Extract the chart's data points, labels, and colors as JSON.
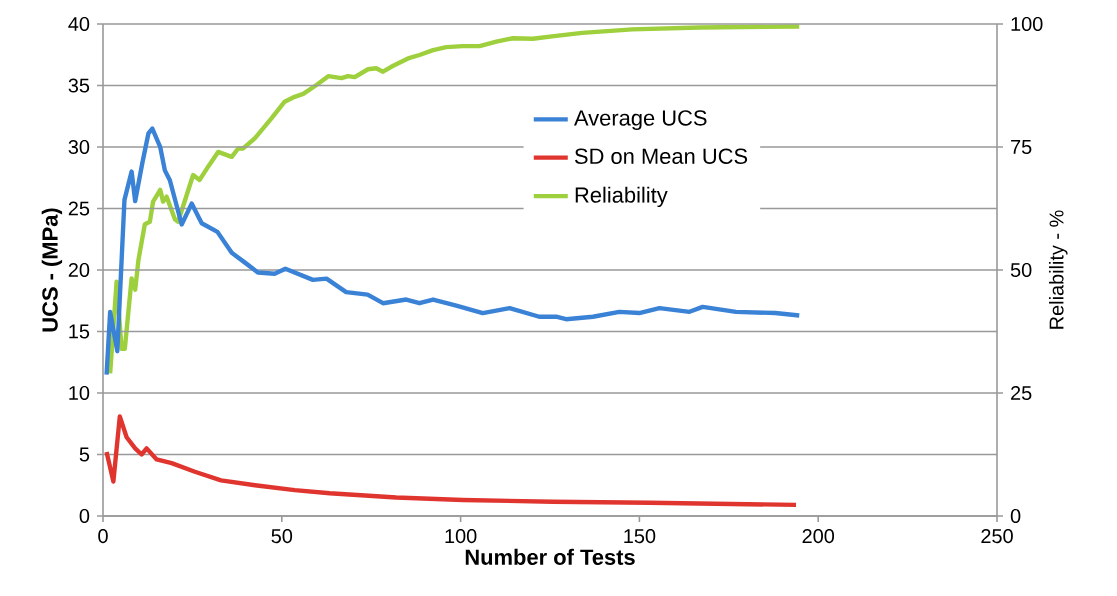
{
  "chart_data": {
    "type": "line",
    "xlabel": "Number of Tests",
    "ylabel": "UCS - (MPa)",
    "y2label": "Reliability - %",
    "xlim": [
      0,
      250
    ],
    "xticks": [
      0,
      50,
      100,
      150,
      200,
      250
    ],
    "ylim": [
      0,
      40
    ],
    "yticks": [
      0,
      5,
      10,
      15,
      20,
      25,
      30,
      35,
      40
    ],
    "y2lim": [
      0,
      100
    ],
    "y2ticks": [
      0,
      25,
      50,
      75,
      100
    ],
    "grid": "y",
    "legend": "right",
    "series": [
      {
        "name": "Average UCS",
        "color": "#3a82d6",
        "x": [
          1,
          2,
          4,
          6,
          8,
          9,
          11,
          12.7,
          13.8,
          16,
          17.3,
          18.7,
          22,
          24.8,
          27.6,
          32,
          36,
          39.7,
          43.3,
          48,
          51,
          58.7,
          62.5,
          68,
          74,
          78.3,
          84.8,
          88.5,
          92.3,
          98.8,
          106.2,
          113.7,
          122,
          126.7,
          129.5,
          137,
          144.4,
          150,
          155.6,
          164,
          167.7,
          177,
          188,
          194.7
        ],
        "values": [
          11.5,
          16.6,
          13.4,
          25.7,
          28,
          25.6,
          28.7,
          31.1,
          31.5,
          30,
          28.1,
          27.3,
          23.7,
          25.4,
          23.8,
          23.1,
          21.4,
          20.6,
          19.8,
          19.7,
          20.1,
          19.2,
          19.3,
          18.2,
          18,
          17.3,
          17.6,
          17.3,
          17.6,
          17.1,
          16.5,
          16.9,
          16.2,
          16.2,
          16.0,
          16.2,
          16.6,
          16.5,
          16.9,
          16.6,
          17.0,
          16.6,
          16.5,
          16.3
        ]
      },
      {
        "name": "SD on Mean UCS",
        "color": "#e0352f",
        "x": [
          1,
          2.9,
          4.7,
          6.6,
          9,
          10.8,
          12.2,
          15,
          19.2,
          25.7,
          33,
          42.5,
          53.6,
          63.4,
          82,
          100.6,
          125.8,
          152.8,
          193.8
        ],
        "values": [
          5.2,
          2.8,
          8.1,
          6.4,
          5.5,
          5.0,
          5.5,
          4.6,
          4.3,
          3.6,
          2.9,
          2.5,
          2.1,
          1.85,
          1.5,
          1.3,
          1.16,
          1.08,
          0.9
        ]
      },
      {
        "name": "Reliability",
        "color": "#9ed03d",
        "axis": "y2",
        "x": [
          2,
          3.8,
          5.2,
          6.1,
          8,
          9,
          9.9,
          11.7,
          13.1,
          14,
          16,
          16.8,
          17.8,
          20.1,
          21,
          25.2,
          27,
          29.4,
          32.2,
          36,
          37.8,
          39.2,
          42.5,
          47.1,
          50.8,
          53.6,
          56,
          59.7,
          63,
          66.7,
          68.5,
          70.4,
          74.1,
          76.4,
          78.3,
          80.6,
          85.3,
          88.5,
          92.3,
          96,
          100.6,
          105.3,
          110,
          114.6,
          120.2,
          126.7,
          134,
          148,
          166.8,
          194.7
        ],
        "values": [
          29,
          47.6,
          34,
          34,
          48.3,
          46,
          52,
          59.3,
          59.8,
          63.9,
          66.3,
          63.9,
          64.9,
          60.3,
          59.8,
          69.3,
          68.3,
          71,
          74,
          73,
          74.7,
          74.7,
          76.8,
          80.8,
          84.2,
          85.2,
          85.8,
          87.6,
          89.4,
          89,
          89.4,
          89.2,
          90.8,
          91,
          90.3,
          91.3,
          93,
          93.7,
          94.7,
          95.3,
          95.5,
          95.5,
          96.4,
          97.1,
          97,
          97.6,
          98.2,
          98.9,
          99.3,
          99.5
        ]
      }
    ]
  }
}
